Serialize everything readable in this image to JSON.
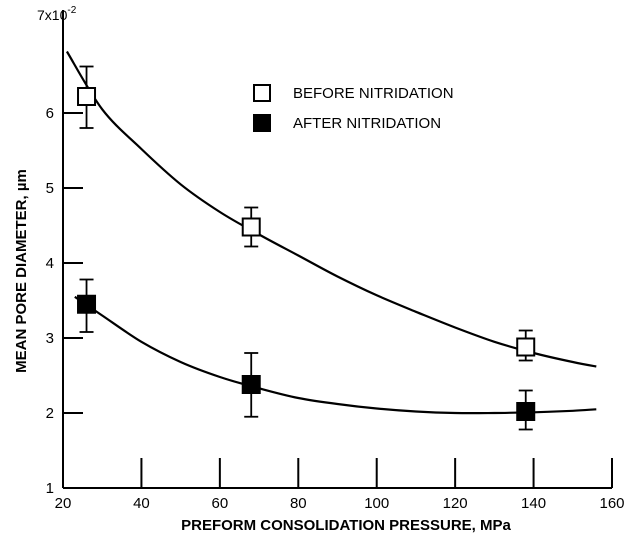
{
  "chart_data": {
    "type": "scatter",
    "title": "",
    "xlabel": "PREFORM CONSOLIDATION PRESSURE, MPa",
    "ylabel": "MEAN PORE DIAMETER, µm",
    "y_multiplier_base": "7x10",
    "y_multiplier_exp": "-2",
    "xlim": [
      20,
      160
    ],
    "ylim": [
      1,
      7
    ],
    "x_ticks": [
      20,
      40,
      60,
      80,
      100,
      120,
      140,
      160
    ],
    "x_tick_labels": [
      "20",
      "40",
      "60",
      "80",
      "100",
      "120",
      "140",
      "160"
    ],
    "y_ticks": [
      1,
      2,
      3,
      4,
      5,
      6
    ],
    "y_tick_labels": [
      "1",
      "2",
      "3",
      "4",
      "5",
      "6"
    ],
    "grid": false,
    "legend_position": "top-right",
    "series": [
      {
        "name": "BEFORE NITRIDATION",
        "marker": "open-square",
        "x": [
          26,
          68,
          138
        ],
        "y": [
          6.22,
          4.48,
          2.88
        ],
        "err_low": [
          5.8,
          4.22,
          2.7
        ],
        "err_high": [
          6.62,
          4.74,
          3.1
        ],
        "fit_curve": {
          "x": [
            21,
            30,
            40,
            50,
            60,
            70,
            80,
            90,
            100,
            110,
            120,
            130,
            140,
            150,
            156
          ],
          "y": [
            6.82,
            6.05,
            5.52,
            5.05,
            4.68,
            4.38,
            4.1,
            3.82,
            3.57,
            3.35,
            3.14,
            2.95,
            2.8,
            2.68,
            2.62
          ]
        }
      },
      {
        "name": "AFTER NITRIDATION",
        "marker": "filled-square",
        "x": [
          26,
          68,
          138
        ],
        "y": [
          3.45,
          2.38,
          2.02
        ],
        "err_low": [
          3.08,
          1.95,
          1.78
        ],
        "err_high": [
          3.78,
          2.8,
          2.3
        ],
        "fit_curve": {
          "x": [
            23,
            30,
            40,
            50,
            60,
            70,
            80,
            90,
            100,
            110,
            120,
            130,
            140,
            150,
            156
          ],
          "y": [
            3.55,
            3.3,
            2.95,
            2.68,
            2.48,
            2.33,
            2.2,
            2.12,
            2.06,
            2.02,
            2.0,
            2.0,
            2.01,
            2.03,
            2.05
          ]
        }
      }
    ]
  }
}
